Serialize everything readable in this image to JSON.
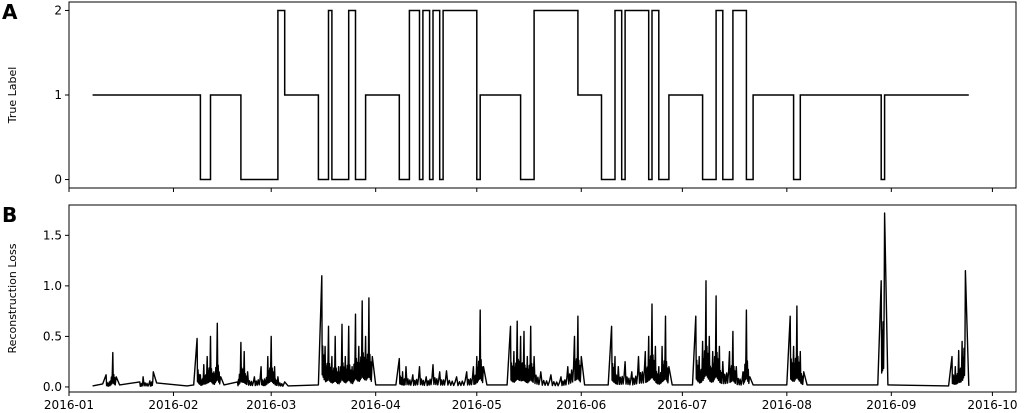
{
  "figure": {
    "letters": [
      "A",
      "B"
    ]
  },
  "chart_data": [
    {
      "panel": "A",
      "type": "line",
      "title": "",
      "xlabel": "",
      "ylabel": "True Label",
      "xlim": [
        "2016-01-01",
        "2016-10-08"
      ],
      "ylim": [
        -0.1,
        2.1
      ],
      "yticks": [
        0,
        1,
        2
      ],
      "grid": false,
      "series": [
        {
          "drawstyle": "steps-post",
          "segments": [
            [
              "2016-01-08",
              1
            ],
            [
              "2016-02-09",
              0
            ],
            [
              "2016-02-12",
              1
            ],
            [
              "2016-02-21",
              0
            ],
            [
              "2016-03-03",
              2
            ],
            [
              "2016-03-05",
              1
            ],
            [
              "2016-03-15",
              0
            ],
            [
              "2016-03-18",
              2
            ],
            [
              "2016-03-19",
              0
            ],
            [
              "2016-03-24",
              2
            ],
            [
              "2016-03-26",
              0
            ],
            [
              "2016-03-29",
              1
            ],
            [
              "2016-04-08",
              0
            ],
            [
              "2016-04-11",
              2
            ],
            [
              "2016-04-14",
              0
            ],
            [
              "2016-04-15",
              2
            ],
            [
              "2016-04-17",
              0
            ],
            [
              "2016-04-18",
              2
            ],
            [
              "2016-04-20",
              0
            ],
            [
              "2016-04-21",
              2
            ],
            [
              "2016-05-01",
              0
            ],
            [
              "2016-05-02",
              1
            ],
            [
              "2016-05-14",
              0
            ],
            [
              "2016-05-18",
              2
            ],
            [
              "2016-05-31",
              1
            ],
            [
              "2016-06-07",
              0
            ],
            [
              "2016-06-11",
              2
            ],
            [
              "2016-06-13",
              0
            ],
            [
              "2016-06-14",
              2
            ],
            [
              "2016-06-21",
              0
            ],
            [
              "2016-06-22",
              2
            ],
            [
              "2016-06-24",
              0
            ],
            [
              "2016-06-27",
              1
            ],
            [
              "2016-07-07",
              0
            ],
            [
              "2016-07-11",
              2
            ],
            [
              "2016-07-13",
              0
            ],
            [
              "2016-07-16",
              2
            ],
            [
              "2016-07-20",
              0
            ],
            [
              "2016-07-22",
              1
            ],
            [
              "2016-08-03",
              0
            ],
            [
              "2016-08-05",
              1
            ],
            [
              "2016-08-29",
              0
            ],
            [
              "2016-08-30",
              1
            ],
            [
              "2016-09-24",
              1
            ]
          ]
        }
      ]
    },
    {
      "panel": "B",
      "type": "line",
      "title": "",
      "xlabel": "",
      "ylabel": "Reconstruction Loss",
      "xlim": [
        "2016-01-01",
        "2016-10-08"
      ],
      "ylim": [
        -0.05,
        1.8
      ],
      "yticks": [
        0.0,
        0.5,
        1.0,
        1.5
      ],
      "ytick_labels": [
        "0.0",
        "0.5",
        "1.0",
        "1.5"
      ],
      "xticks": [
        "2016-01",
        "2016-02",
        "2016-03",
        "2016-04",
        "2016-05",
        "2016-06",
        "2016-07",
        "2016-08",
        "2016-09",
        "2016-10"
      ],
      "grid": false,
      "series": [
        {
          "baseline": 0.01,
          "points": [
            [
              "2016-01-08",
              0.01
            ],
            [
              "2016-01-11",
              0.03
            ],
            [
              "2016-01-12",
              0.12
            ],
            [
              "2016-01-13",
              0.05
            ],
            [
              "2016-01-14",
              0.34
            ],
            [
              "2016-01-15",
              0.1
            ],
            [
              "2016-01-16",
              0.02
            ],
            [
              "2016-01-22",
              0.05
            ],
            [
              "2016-01-23",
              0.1
            ],
            [
              "2016-01-25",
              0.06
            ],
            [
              "2016-01-26",
              0.15
            ],
            [
              "2016-01-27",
              0.04
            ],
            [
              "2016-02-05",
              0.01
            ],
            [
              "2016-02-07",
              0.02
            ],
            [
              "2016-02-08",
              0.48
            ],
            [
              "2016-02-09",
              0.12
            ],
            [
              "2016-02-10",
              0.22
            ],
            [
              "2016-02-11",
              0.3
            ],
            [
              "2016-02-12",
              0.5
            ],
            [
              "2016-02-13",
              0.15
            ],
            [
              "2016-02-14",
              0.63
            ],
            [
              "2016-02-15",
              0.1
            ],
            [
              "2016-02-16",
              0.02
            ],
            [
              "2016-02-20",
              0.05
            ],
            [
              "2016-02-21",
              0.44
            ],
            [
              "2016-02-22",
              0.35
            ],
            [
              "2016-02-23",
              0.15
            ],
            [
              "2016-02-25",
              0.1
            ],
            [
              "2016-02-27",
              0.2
            ],
            [
              "2016-02-28",
              0.08
            ],
            [
              "2016-02-29",
              0.3
            ],
            [
              "2016-03-01",
              0.5
            ],
            [
              "2016-03-02",
              0.2
            ],
            [
              "2016-03-03",
              0.1
            ],
            [
              "2016-03-05",
              0.05
            ],
            [
              "2016-03-06",
              0.01
            ],
            [
              "2016-03-15",
              0.02
            ],
            [
              "2016-03-16",
              1.1
            ],
            [
              "2016-03-17",
              0.4
            ],
            [
              "2016-03-18",
              0.6
            ],
            [
              "2016-03-19",
              0.3
            ],
            [
              "2016-03-20",
              0.5
            ],
            [
              "2016-03-21",
              0.2
            ],
            [
              "2016-03-22",
              0.62
            ],
            [
              "2016-03-23",
              0.3
            ],
            [
              "2016-03-24",
              0.6
            ],
            [
              "2016-03-25",
              0.2
            ],
            [
              "2016-03-26",
              0.72
            ],
            [
              "2016-03-27",
              0.4
            ],
            [
              "2016-03-28",
              0.85
            ],
            [
              "2016-03-29",
              0.5
            ],
            [
              "2016-03-30",
              0.88
            ],
            [
              "2016-03-31",
              0.3
            ],
            [
              "2016-04-01",
              0.02
            ],
            [
              "2016-04-07",
              0.02
            ],
            [
              "2016-04-08",
              0.28
            ],
            [
              "2016-04-09",
              0.15
            ],
            [
              "2016-04-10",
              0.2
            ],
            [
              "2016-04-12",
              0.12
            ],
            [
              "2016-04-14",
              0.2
            ],
            [
              "2016-04-16",
              0.1
            ],
            [
              "2016-04-18",
              0.22
            ],
            [
              "2016-04-20",
              0.15
            ],
            [
              "2016-04-22",
              0.16
            ],
            [
              "2016-04-25",
              0.1
            ],
            [
              "2016-04-28",
              0.15
            ],
            [
              "2016-04-30",
              0.2
            ],
            [
              "2016-05-01",
              0.3
            ],
            [
              "2016-05-02",
              0.76
            ],
            [
              "2016-05-03",
              0.2
            ],
            [
              "2016-05-04",
              0.02
            ],
            [
              "2016-05-10",
              0.02
            ],
            [
              "2016-05-11",
              0.6
            ],
            [
              "2016-05-12",
              0.35
            ],
            [
              "2016-05-13",
              0.65
            ],
            [
              "2016-05-14",
              0.5
            ],
            [
              "2016-05-15",
              0.55
            ],
            [
              "2016-05-16",
              0.3
            ],
            [
              "2016-05-17",
              0.6
            ],
            [
              "2016-05-18",
              0.3
            ],
            [
              "2016-05-20",
              0.15
            ],
            [
              "2016-05-23",
              0.12
            ],
            [
              "2016-05-26",
              0.1
            ],
            [
              "2016-05-28",
              0.2
            ],
            [
              "2016-05-30",
              0.5
            ],
            [
              "2016-05-31",
              0.7
            ],
            [
              "2016-06-01",
              0.3
            ],
            [
              "2016-06-02",
              0.02
            ],
            [
              "2016-06-09",
              0.02
            ],
            [
              "2016-06-10",
              0.6
            ],
            [
              "2016-06-11",
              0.3
            ],
            [
              "2016-06-12",
              0.2
            ],
            [
              "2016-06-14",
              0.25
            ],
            [
              "2016-06-16",
              0.15
            ],
            [
              "2016-06-18",
              0.3
            ],
            [
              "2016-06-20",
              0.35
            ],
            [
              "2016-06-21",
              0.5
            ],
            [
              "2016-06-22",
              0.82
            ],
            [
              "2016-06-23",
              0.4
            ],
            [
              "2016-06-24",
              0.2
            ],
            [
              "2016-06-25",
              0.4
            ],
            [
              "2016-06-26",
              0.7
            ],
            [
              "2016-06-27",
              0.2
            ],
            [
              "2016-06-28",
              0.02
            ],
            [
              "2016-07-04",
              0.02
            ],
            [
              "2016-07-05",
              0.7
            ],
            [
              "2016-07-06",
              0.3
            ],
            [
              "2016-07-07",
              0.45
            ],
            [
              "2016-07-08",
              1.05
            ],
            [
              "2016-07-09",
              0.5
            ],
            [
              "2016-07-10",
              0.35
            ],
            [
              "2016-07-11",
              0.9
            ],
            [
              "2016-07-12",
              0.4
            ],
            [
              "2016-07-13",
              0.25
            ],
            [
              "2016-07-15",
              0.35
            ],
            [
              "2016-07-16",
              0.55
            ],
            [
              "2016-07-17",
              0.2
            ],
            [
              "2016-07-19",
              0.15
            ],
            [
              "2016-07-20",
              0.76
            ],
            [
              "2016-07-21",
              0.1
            ],
            [
              "2016-07-22",
              0.02
            ],
            [
              "2016-08-01",
              0.02
            ],
            [
              "2016-08-02",
              0.7
            ],
            [
              "2016-08-03",
              0.4
            ],
            [
              "2016-08-04",
              0.8
            ],
            [
              "2016-08-05",
              0.35
            ],
            [
              "2016-08-06",
              0.15
            ],
            [
              "2016-08-07",
              0.02
            ],
            [
              "2016-08-28",
              0.02
            ],
            [
              "2016-08-29",
              1.05
            ],
            [
              "2016-08-30",
              1.72
            ],
            [
              "2016-08-31",
              0.02
            ],
            [
              "2016-09-18",
              0.01
            ],
            [
              "2016-09-19",
              0.3
            ],
            [
              "2016-09-20",
              0.2
            ],
            [
              "2016-09-21",
              0.36
            ],
            [
              "2016-09-22",
              0.45
            ],
            [
              "2016-09-23",
              1.15
            ],
            [
              "2016-09-24",
              0.01
            ]
          ]
        }
      ]
    }
  ]
}
